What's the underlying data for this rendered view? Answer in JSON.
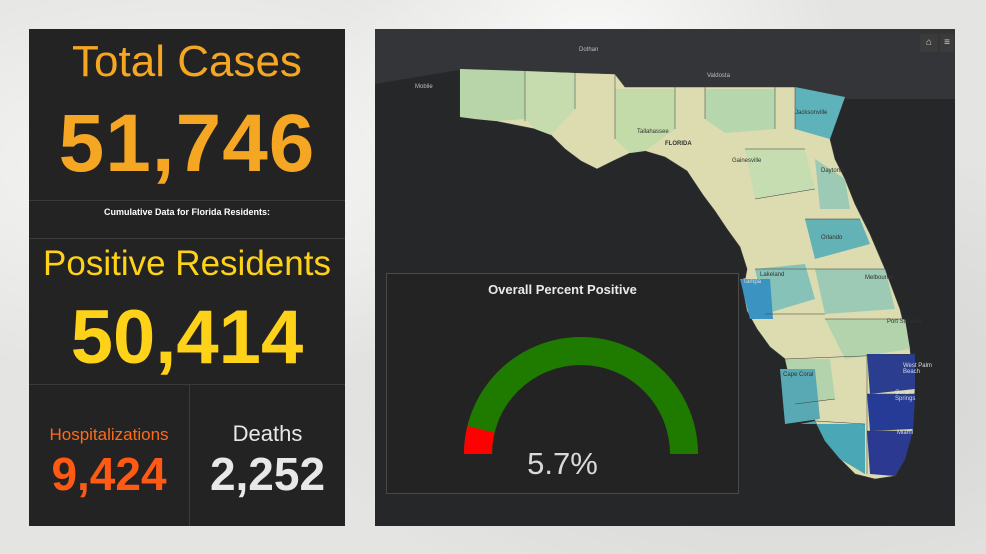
{
  "stats": {
    "total_cases_label": "Total Cases",
    "total_cases_value": "51,746",
    "cumulative_note": "Cumulative Data for Florida Residents:",
    "positive_residents_label": "Positive Residents",
    "positive_residents_value": "50,414",
    "hospitalizations_label": "Hospitalizations",
    "hospitalizations_value": "9,424",
    "deaths_label": "Deaths",
    "deaths_value": "2,252"
  },
  "map": {
    "labels": {
      "dothan": "Dothan",
      "valdosta": "Valdosta",
      "mobile": "Mobile",
      "tallahassee": "Tallahassee",
      "florida": "FLORIDA",
      "jacksonville": "Jacksonville",
      "gainesville": "Gainesville",
      "daytona": "Daytona",
      "orlando": "Orlando",
      "lakeland": "Lakeland",
      "tampa": "Tampa",
      "melbourne": "Melbourne",
      "port_st_lucie": "Port St Lucie",
      "cape_coral": "Cape Coral",
      "west_palm_beach": "West Palm Beach",
      "coral_springs": "Coral Springs",
      "miami": "Miami"
    },
    "home_icon": "home-icon",
    "list_icon": "list-icon"
  },
  "gauge": {
    "title": "Overall Percent Positive",
    "value_text": "5.7%",
    "value_fraction": 0.057,
    "fill_color": "#ff0000",
    "track_color": "#1f7a00"
  },
  "colors": {
    "total": "#f5a623",
    "positive": "#ffd21a",
    "hospitalizations": "#ff5a14",
    "deaths": "#e8e8e8"
  }
}
